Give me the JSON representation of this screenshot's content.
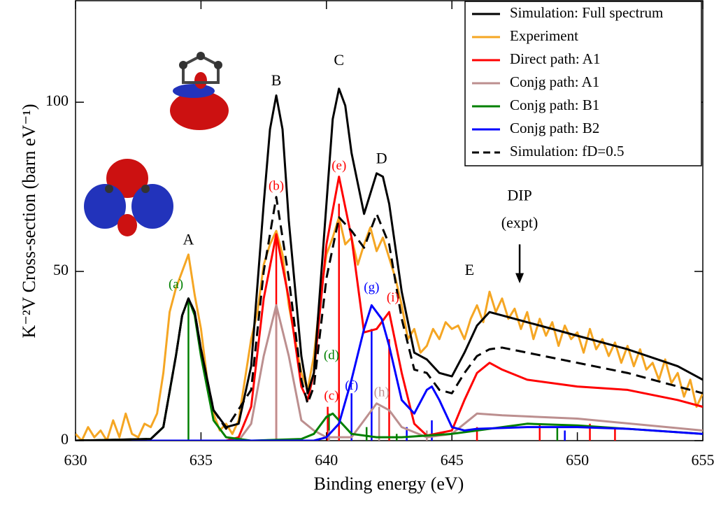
{
  "chart_data": {
    "type": "line",
    "x_label": "Binding energy (eV)",
    "y_label": "K⁻²V Cross-section (barn eV⁻¹)",
    "xlim": [
      630,
      655
    ],
    "xticks": [
      630,
      635,
      640,
      645,
      650,
      655
    ],
    "ylim": [
      0,
      130
    ],
    "yticks": [
      0,
      50,
      100
    ],
    "legend": "upper right",
    "series": [
      {
        "name": "Simulation: Full spectrum",
        "color": "#000000",
        "dash": false,
        "x": [
          630,
          633,
          633.5,
          634,
          634.25,
          634.5,
          634.75,
          635,
          635.5,
          636,
          636.5,
          637,
          637.5,
          637.75,
          638,
          638.25,
          638.5,
          639,
          639.25,
          639.5,
          640,
          640.25,
          640.5,
          640.75,
          641,
          641.5,
          642,
          642.25,
          642.5,
          643,
          643.5,
          644,
          644.5,
          645,
          645.5,
          646,
          646.5,
          647,
          648,
          650,
          652,
          654,
          655
        ],
        "values": [
          0,
          0.5,
          4,
          25,
          37,
          42,
          38,
          27,
          9,
          4,
          5,
          22,
          70,
          92,
          102,
          92,
          65,
          25,
          14,
          20,
          70,
          95,
          104,
          99,
          85,
          67,
          79,
          78,
          70,
          44,
          26,
          24,
          20,
          19,
          26,
          34,
          38,
          37,
          35,
          31,
          27,
          22,
          18
        ]
      },
      {
        "name": "Experiment",
        "color": "#f5a623",
        "dash": false,
        "x": [
          630,
          630.25,
          630.5,
          630.75,
          631,
          631.25,
          631.5,
          631.75,
          632,
          632.25,
          632.5,
          632.75,
          633,
          633.25,
          633.5,
          633.75,
          634,
          634.25,
          634.5,
          634.75,
          635,
          635.25,
          635.5,
          635.75,
          636,
          636.25,
          636.5,
          636.75,
          637,
          637.25,
          637.5,
          637.75,
          638,
          638.25,
          638.5,
          638.75,
          639,
          639.25,
          639.5,
          639.75,
          640,
          640.25,
          640.5,
          640.75,
          641,
          641.25,
          641.5,
          641.75,
          642,
          642.25,
          642.5,
          642.75,
          643,
          643.25,
          643.5,
          643.75,
          644,
          644.25,
          644.5,
          644.75,
          645,
          645.25,
          645.5,
          645.75,
          646,
          646.25,
          646.5,
          646.75,
          647,
          647.25,
          647.5,
          647.75,
          648,
          648.25,
          648.5,
          648.75,
          649,
          649.25,
          649.5,
          649.75,
          650,
          650.25,
          650.5,
          650.75,
          651,
          651.25,
          651.5,
          651.75,
          652,
          652.25,
          652.5,
          652.75,
          653,
          653.25,
          653.5,
          653.75,
          654,
          654.25,
          654.5,
          654.75,
          655
        ],
        "values": [
          2,
          0,
          4,
          1,
          3,
          0,
          6,
          1,
          8,
          2,
          1,
          5,
          4,
          8,
          20,
          38,
          45,
          50,
          55,
          43,
          33,
          18,
          8,
          3,
          5,
          2,
          6,
          18,
          30,
          38,
          52,
          58,
          62,
          55,
          40,
          30,
          20,
          15,
          25,
          42,
          55,
          60,
          66,
          58,
          60,
          52,
          58,
          63,
          56,
          60,
          54,
          48,
          40,
          30,
          33,
          26,
          28,
          33,
          30,
          35,
          33,
          34,
          30,
          36,
          40,
          35,
          44,
          38,
          42,
          36,
          39,
          33,
          38,
          30,
          36,
          31,
          35,
          28,
          34,
          30,
          32,
          26,
          33,
          27,
          30,
          25,
          29,
          23,
          28,
          22,
          27,
          21,
          23,
          18,
          24,
          17,
          20,
          13,
          18,
          10,
          14
        ]
      },
      {
        "name": "Direct path: A1",
        "color": "#ff0000",
        "dash": false,
        "x": [
          630,
          636,
          636.5,
          637,
          637.5,
          638,
          638.5,
          639,
          639.25,
          639.5,
          640,
          640.5,
          641,
          641.5,
          642,
          642.5,
          643,
          643.5,
          644,
          645,
          645.5,
          646,
          646.5,
          647,
          648,
          650,
          652,
          654,
          655
        ],
        "values": [
          0,
          0,
          1,
          10,
          42,
          61,
          42,
          16,
          12,
          20,
          58,
          78,
          60,
          32,
          33,
          38,
          20,
          5,
          1.5,
          3,
          12,
          20,
          23,
          21,
          18,
          16,
          15,
          12,
          10
        ]
      },
      {
        "name": "Conjg path: A1",
        "color": "#bc8f8f",
        "dash": false,
        "x": [
          630,
          636.5,
          637,
          637.5,
          638,
          638.5,
          639,
          639.5,
          640,
          641,
          641.5,
          642,
          642.5,
          643,
          644,
          645,
          646,
          647,
          650,
          655
        ],
        "values": [
          0,
          0,
          5,
          25,
          40,
          25,
          6,
          3,
          1,
          1,
          6,
          11,
          9,
          4,
          1,
          2,
          8,
          7.5,
          6.5,
          3
        ]
      },
      {
        "name": "Conjg  path: B1",
        "color": "#008000",
        "dash": false,
        "x": [
          630,
          633,
          633.5,
          634,
          634.25,
          634.5,
          634.75,
          635,
          635.5,
          636,
          637,
          639,
          639.5,
          640,
          640.25,
          640.5,
          641,
          642,
          643,
          644,
          645,
          646,
          648,
          650,
          652,
          655
        ],
        "values": [
          0,
          0.5,
          4,
          25,
          37,
          42,
          37,
          25,
          6,
          1,
          0,
          0.5,
          2,
          7,
          8,
          6,
          2,
          1,
          1,
          1.5,
          2,
          3,
          5,
          4.5,
          3.5,
          2
        ]
      },
      {
        "name": "Conjg path: B2",
        "color": "#0000ff",
        "dash": false,
        "x": [
          630,
          639.5,
          640,
          640.5,
          641,
          641.5,
          641.8,
          642.2,
          642.5,
          643,
          643.5,
          644,
          644.2,
          644.5,
          645,
          645.5,
          646,
          648,
          650,
          652,
          655
        ],
        "values": [
          0,
          0,
          1,
          5,
          18,
          33,
          40,
          36,
          28,
          12,
          8,
          15,
          16,
          12,
          4,
          3,
          3.5,
          4,
          4,
          3.5,
          2
        ]
      },
      {
        "name": "Simulation: fD=0.5",
        "color": "#000000",
        "dash": true,
        "x": [
          630,
          633,
          633.5,
          634,
          634.25,
          634.5,
          634.75,
          635,
          635.5,
          636,
          637,
          637.5,
          638,
          638.5,
          639,
          639.25,
          639.5,
          640,
          640.5,
          641,
          641.5,
          642,
          642.5,
          643,
          643.5,
          644,
          644.5,
          645,
          645.5,
          646,
          646.5,
          647,
          648,
          650,
          652,
          654,
          655
        ],
        "values": [
          0,
          0.5,
          4,
          25,
          37,
          42,
          38,
          27,
          9,
          3.5,
          15,
          50,
          72,
          48,
          18,
          11,
          16,
          48,
          66,
          62,
          57,
          67,
          58,
          36,
          21,
          20,
          15,
          14,
          20,
          25,
          27,
          27.5,
          26,
          23,
          20,
          16,
          14
        ]
      }
    ],
    "sticks": [
      {
        "color": "#008000",
        "x": [
          634.5,
          640.1,
          641.6,
          642.8,
          649.2
        ],
        "values": [
          41,
          8,
          4,
          2,
          4
        ]
      },
      {
        "color": "#ff0000",
        "x": [
          638,
          640.5,
          642.5,
          640.05,
          646,
          648.5,
          650.5,
          651.5
        ],
        "values": [
          60,
          70,
          30,
          10,
          4,
          5,
          5,
          4
        ]
      },
      {
        "color": "#bc8f8f",
        "x": [
          638,
          640.1,
          642.1,
          644
        ],
        "values": [
          40,
          3,
          10,
          3
        ]
      },
      {
        "color": "#0000ff",
        "x": [
          641,
          641.8,
          644.2,
          643.2,
          649.5
        ],
        "values": [
          14,
          33,
          6,
          4,
          3
        ]
      }
    ],
    "annotations": [
      {
        "text": "A",
        "color": "#000000"
      },
      {
        "text": "B",
        "color": "#000000"
      },
      {
        "text": "C",
        "color": "#000000"
      },
      {
        "text": "D",
        "color": "#000000"
      },
      {
        "text": "E",
        "color": "#000000"
      },
      {
        "text": "(a)",
        "color": "#008000"
      },
      {
        "text": "(b)",
        "color": "#ff0000"
      },
      {
        "text": "(c)",
        "color": "#ff0000"
      },
      {
        "text": "(d)",
        "color": "#008000"
      },
      {
        "text": "(e)",
        "color": "#ff0000"
      },
      {
        "text": "(f)",
        "color": "#0000ff"
      },
      {
        "text": "(g)",
        "color": "#0000ff"
      },
      {
        "text": "(h)",
        "color": "#bc8f8f"
      },
      {
        "text": "(i)",
        "color": "#ff0000"
      },
      {
        "text": "DIP",
        "color": "#000000"
      },
      {
        "text": "(expt)",
        "color": "#000000"
      }
    ]
  }
}
